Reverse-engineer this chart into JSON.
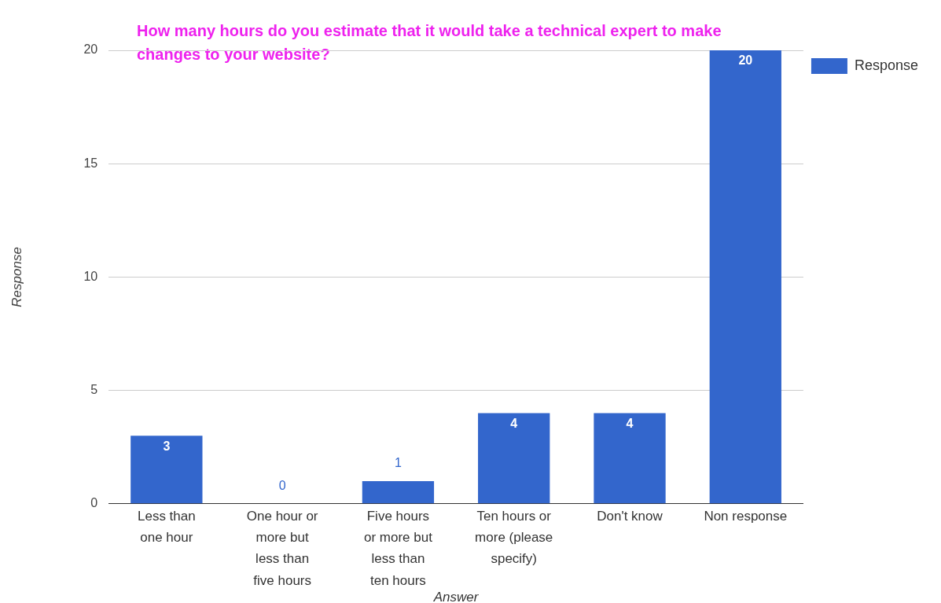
{
  "chart_data": {
    "type": "bar",
    "title": "How many hours do you estimate that it would take a technical expert to make changes to your website?",
    "xlabel": "Answer",
    "ylabel": "Response",
    "categories": [
      "Less than one hour",
      "One hour or more but less than five hours",
      "Five hours or more but less than ten hours",
      "Ten hours or more (please specify)",
      "Don't know",
      "Non response"
    ],
    "series": [
      {
        "name": "Response",
        "color": "#3366cc",
        "values": [
          3,
          0,
          1,
          4,
          4,
          20
        ]
      }
    ],
    "ylim": [
      0,
      20
    ],
    "yticks": [
      0,
      5,
      10,
      15,
      20
    ],
    "grid": "y",
    "legend": "top right",
    "data_labels": true
  }
}
